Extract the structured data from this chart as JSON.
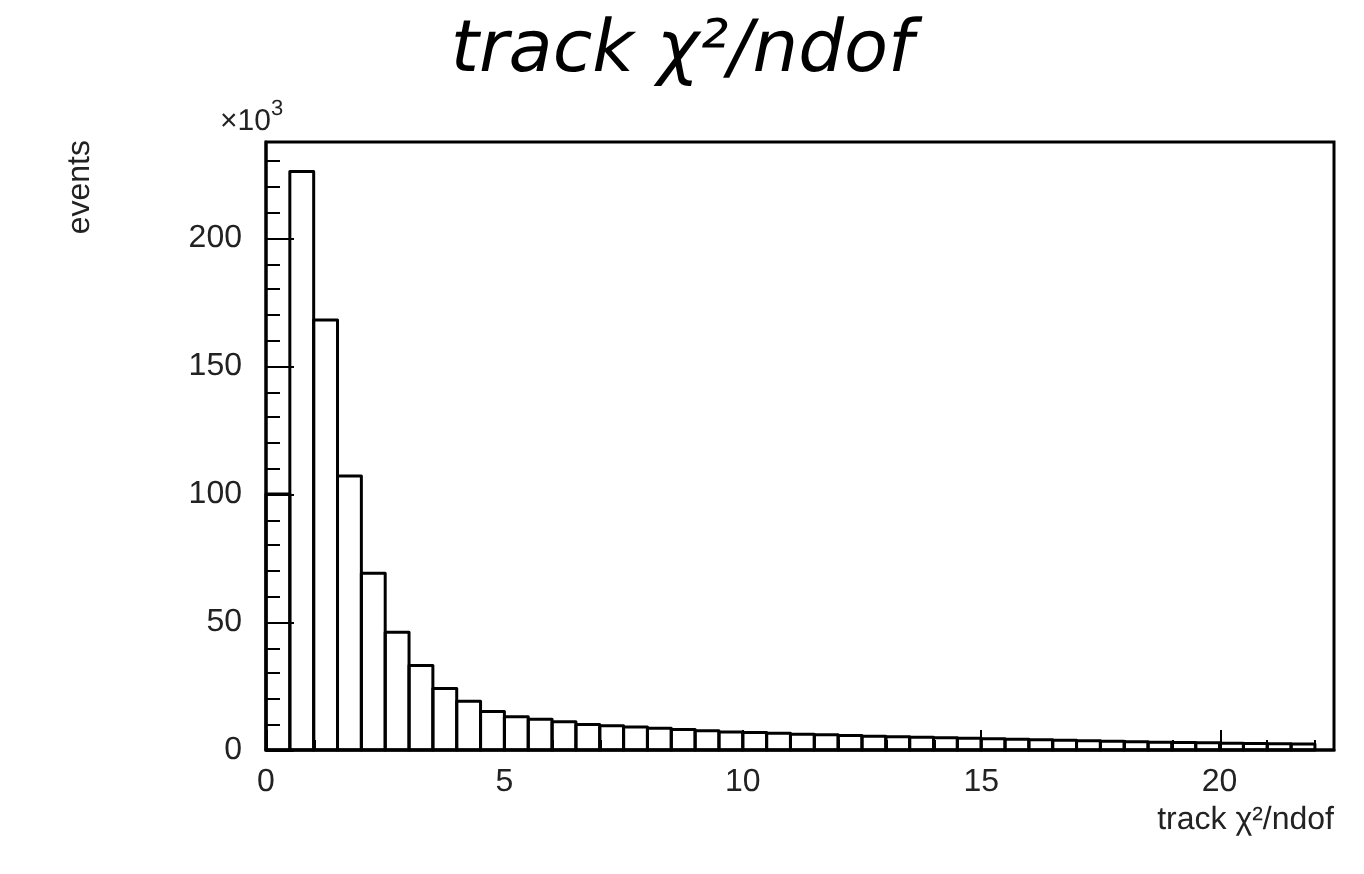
{
  "chart_data": {
    "type": "histogram",
    "title": "track χ²/ndof",
    "xlabel": "track χ²/ndof",
    "ylabel": "events",
    "annotations": [
      "×10$^{3}$"
    ],
    "bins": [
      0,
      0.5,
      1,
      1.5,
      2,
      2.5,
      3,
      3.5,
      4,
      4.5,
      5,
      5.5,
      6,
      6.5,
      7,
      7.5,
      8,
      8.5,
      9,
      9.5,
      10,
      10.5,
      11,
      11.5,
      12,
      12.5,
      13,
      13.5,
      14,
      14.5,
      15,
      15.5,
      16,
      16.5,
      17,
      17.5,
      18,
      18.5,
      19,
      19.5,
      20,
      20.5,
      21,
      21.5,
      22
    ],
    "values": [
      100,
      226,
      168,
      107,
      69,
      46,
      33,
      24,
      19,
      15,
      13,
      12,
      11,
      10,
      9.5,
      9,
      8.5,
      8,
      7.5,
      7,
      6.8,
      6.5,
      6.2,
      6,
      5.7,
      5.4,
      5.2,
      5,
      4.8,
      4.6,
      4.4,
      4.2,
      4,
      3.8,
      3.6,
      3.4,
      3.2,
      3,
      2.9,
      2.8,
      2.6,
      2.5,
      2.4,
      2.3
    ],
    "color": "#000000",
    "xlim": [
      0,
      22.4
    ],
    "xticks": [
      0,
      5,
      10,
      15,
      20
    ],
    "ylim": [
      0,
      237.5
    ],
    "yticks": [
      0,
      50,
      100,
      150,
      200
    ],
    "grid": false
  }
}
